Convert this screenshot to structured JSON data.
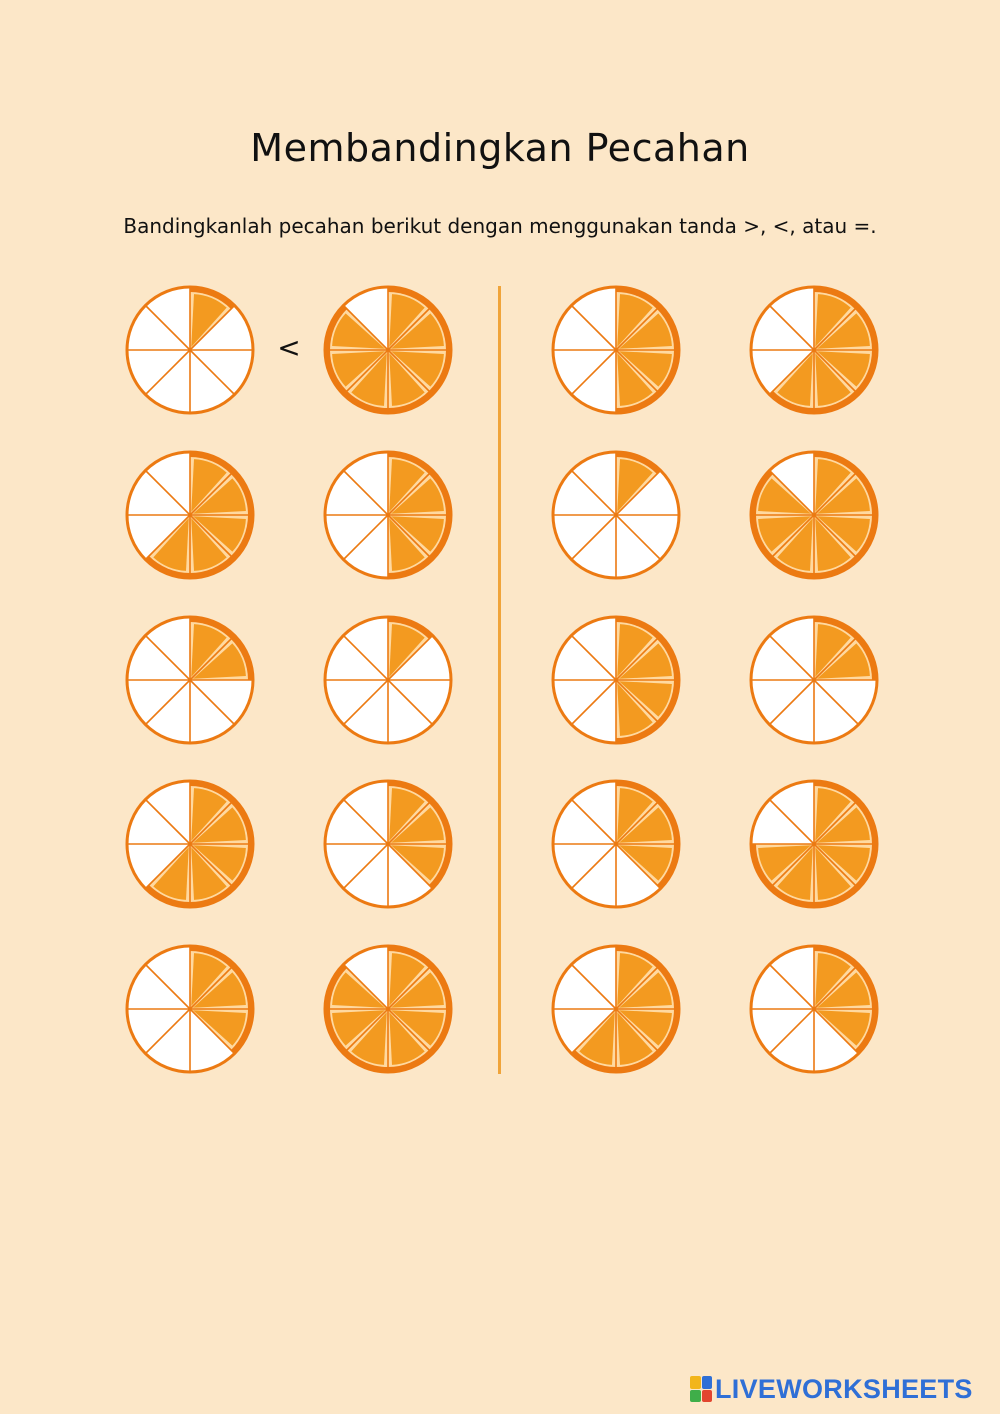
{
  "title": "Membandingkan Pecahan",
  "instruction": "Bandingkanlah pecahan berikut dengan menggunakan tanda >, <, atau =.",
  "colors": {
    "background": "#fce7c8",
    "rind": "#ec7a12",
    "flesh": "#f39a20",
    "pith": "#ffd9a0",
    "empty": "#ffffff",
    "divider": "#f0a43a"
  },
  "problems": [
    {
      "left": {
        "shaded": [
          0
        ],
        "denominator": 8
      },
      "right": {
        "shaded": [
          0,
          1,
          2,
          3,
          4,
          5,
          6
        ],
        "denominator": 8
      },
      "answer": "<"
    },
    {
      "left": {
        "shaded": [
          0,
          1,
          2,
          3
        ],
        "denominator": 8
      },
      "right": {
        "shaded": [
          0,
          1,
          2,
          3,
          4
        ],
        "denominator": 8
      },
      "answer": ""
    },
    {
      "left": {
        "shaded": [
          0,
          1,
          2,
          3,
          4
        ],
        "denominator": 8
      },
      "right": {
        "shaded": [
          0,
          1,
          2,
          3
        ],
        "denominator": 8
      },
      "answer": ""
    },
    {
      "left": {
        "shaded": [
          0
        ],
        "denominator": 8
      },
      "right": {
        "shaded": [
          0,
          1,
          2,
          3,
          4,
          5,
          6
        ],
        "denominator": 8
      },
      "answer": ""
    },
    {
      "left": {
        "shaded": [
          0,
          1
        ],
        "denominator": 8
      },
      "right": {
        "shaded": [
          0
        ],
        "denominator": 8
      },
      "answer": ""
    },
    {
      "left": {
        "shaded": [
          0,
          1,
          2,
          3
        ],
        "denominator": 8
      },
      "right": {
        "shaded": [
          0,
          1
        ],
        "denominator": 8
      },
      "answer": ""
    },
    {
      "left": {
        "shaded": [
          0,
          1,
          2,
          3,
          4
        ],
        "denominator": 8
      },
      "right": {
        "shaded": [
          0,
          1,
          2
        ],
        "denominator": 8
      },
      "answer": ""
    },
    {
      "left": {
        "shaded": [
          0,
          1,
          2
        ],
        "denominator": 8
      },
      "right": {
        "shaded": [
          0,
          1,
          2,
          3,
          4,
          5
        ],
        "denominator": 8
      },
      "answer": ""
    },
    {
      "left": {
        "shaded": [
          0,
          1,
          2
        ],
        "denominator": 8
      },
      "right": {
        "shaded": [
          0,
          1,
          2,
          3,
          4,
          5,
          6
        ],
        "denominator": 8
      },
      "answer": ""
    },
    {
      "left": {
        "shaded": [
          0,
          1,
          2,
          3,
          4
        ],
        "denominator": 8
      },
      "right": {
        "shaded": [
          0,
          1,
          2
        ],
        "denominator": 8
      },
      "answer": ""
    }
  ],
  "logo": {
    "text": "LIVEWORKSHEETS"
  }
}
